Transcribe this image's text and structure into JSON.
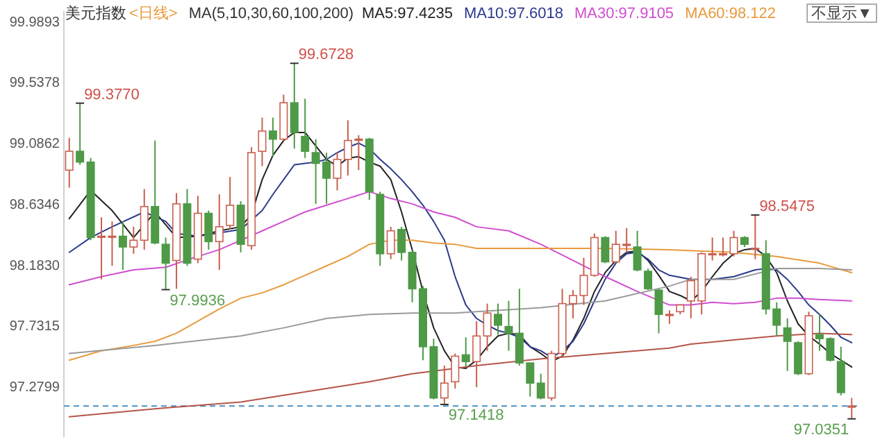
{
  "chart_data": {
    "type": "candlestick",
    "title": "美元指数",
    "subtitle": "<日线>",
    "legend_title": "MA(5,10,30,60,100,200)",
    "legend": "top",
    "tick_labels": "y",
    "categories": [
      null,
      null,
      null,
      null,
      null,
      null,
      null,
      null,
      null,
      null,
      null,
      null,
      null,
      null,
      null,
      null,
      null,
      null,
      null,
      null,
      null,
      null,
      null,
      null,
      null,
      null,
      null,
      null,
      null,
      null,
      null,
      null,
      null,
      null,
      null,
      null,
      null,
      null,
      null,
      null,
      null,
      null,
      null,
      null,
      null,
      null,
      null,
      null,
      null,
      null,
      null,
      null,
      null,
      null,
      null,
      null,
      null,
      null,
      null,
      null,
      null,
      null,
      null,
      null,
      null,
      null,
      null,
      null,
      null,
      null,
      null,
      null,
      null,
      null
    ],
    "ohlc": [
      [
        98.88,
        99.12,
        98.75,
        99.02
      ],
      [
        99.02,
        99.377,
        98.92,
        98.94
      ],
      [
        98.94,
        98.97,
        98.36,
        98.38
      ],
      [
        98.39,
        98.53,
        98.07,
        98.39
      ],
      [
        98.39,
        98.5,
        98.17,
        98.39
      ],
      [
        98.39,
        98.5,
        98.14,
        98.31
      ],
      [
        98.31,
        98.46,
        98.26,
        98.36
      ],
      [
        98.36,
        98.74,
        98.29,
        98.61
      ],
      [
        98.61,
        99.1,
        98.33,
        98.34
      ],
      [
        98.33,
        98.38,
        97.9936,
        98.19
      ],
      [
        98.21,
        98.71,
        98.0,
        98.63
      ],
      [
        98.63,
        98.74,
        98.17,
        98.19
      ],
      [
        98.22,
        98.69,
        98.19,
        98.56
      ],
      [
        98.56,
        98.58,
        98.29,
        98.35
      ],
      [
        98.35,
        98.7,
        98.14,
        98.46
      ],
      [
        98.47,
        98.83,
        98.44,
        98.62
      ],
      [
        98.62,
        98.65,
        98.27,
        98.33
      ],
      [
        98.32,
        99.05,
        98.29,
        99.01
      ],
      [
        99.02,
        99.27,
        98.91,
        99.17
      ],
      [
        99.17,
        99.27,
        98.98,
        99.11
      ],
      [
        99.11,
        99.44,
        99.1,
        99.38
      ],
      [
        99.38,
        99.6728,
        99.04,
        99.16
      ],
      [
        99.13,
        99.41,
        98.97,
        99.02
      ],
      [
        99.01,
        99.11,
        98.63,
        98.93
      ],
      [
        98.94,
        99.01,
        98.63,
        98.82
      ],
      [
        98.82,
        99.01,
        98.73,
        98.96
      ],
      [
        98.96,
        99.25,
        98.84,
        99.1
      ],
      [
        99.11,
        99.14,
        98.88,
        99.11
      ],
      [
        99.11,
        99.12,
        98.66,
        98.72
      ],
      [
        98.7,
        98.72,
        98.17,
        98.26
      ],
      [
        98.26,
        98.46,
        98.22,
        98.43
      ],
      [
        98.44,
        98.46,
        98.21,
        98.27
      ],
      [
        98.27,
        98.29,
        97.9,
        98.0
      ],
      [
        98.0,
        98.02,
        97.47,
        97.57
      ],
      [
        97.57,
        97.63,
        97.18,
        97.19
      ],
      [
        97.19,
        97.43,
        97.1418,
        97.3
      ],
      [
        97.31,
        97.52,
        97.26,
        97.5
      ],
      [
        97.51,
        97.64,
        97.42,
        97.46
      ],
      [
        97.46,
        97.76,
        97.27,
        97.65
      ],
      [
        97.65,
        97.89,
        97.54,
        97.82
      ],
      [
        97.81,
        97.89,
        97.66,
        97.73
      ],
      [
        97.72,
        97.91,
        97.54,
        97.67
      ],
      [
        97.67,
        98.0,
        97.43,
        97.45
      ],
      [
        97.45,
        97.45,
        97.2,
        97.3
      ],
      [
        97.3,
        97.37,
        97.18,
        97.19
      ],
      [
        97.19,
        97.54,
        97.17,
        97.52
      ],
      [
        97.52,
        98.0,
        97.49,
        97.89
      ],
      [
        97.89,
        97.99,
        97.78,
        97.95
      ],
      [
        97.95,
        98.23,
        97.88,
        98.1
      ],
      [
        98.1,
        98.41,
        98.09,
        98.38
      ],
      [
        98.38,
        98.39,
        98.19,
        98.2
      ],
      [
        98.2,
        98.43,
        98.19,
        98.33
      ],
      [
        98.33,
        98.45,
        98.27,
        98.33
      ],
      [
        98.31,
        98.43,
        98.13,
        98.14
      ],
      [
        98.13,
        98.15,
        97.99,
        98.0
      ],
      [
        97.99,
        98.0,
        97.67,
        97.81
      ],
      [
        97.81,
        97.84,
        97.74,
        97.81
      ],
      [
        97.83,
        97.88,
        97.81,
        97.88
      ],
      [
        97.91,
        98.09,
        97.78,
        98.06
      ],
      [
        97.91,
        98.27,
        97.81,
        98.26
      ],
      [
        98.26,
        98.38,
        98.21,
        98.26
      ],
      [
        98.26,
        98.38,
        98.24,
        98.26
      ],
      [
        98.26,
        98.43,
        98.24,
        98.38
      ],
      [
        98.38,
        98.39,
        98.31,
        98.33
      ],
      [
        98.3,
        98.5475,
        98.22,
        98.3
      ],
      [
        98.26,
        98.36,
        97.81,
        97.85
      ],
      [
        97.85,
        97.9,
        97.65,
        97.73
      ],
      [
        97.71,
        97.78,
        97.39,
        97.61
      ],
      [
        97.6,
        97.61,
        97.36,
        97.37
      ],
      [
        97.37,
        97.83,
        97.36,
        97.8
      ],
      [
        97.66,
        97.81,
        97.54,
        97.63
      ],
      [
        97.63,
        97.64,
        97.46,
        97.47
      ],
      [
        97.46,
        97.57,
        97.21,
        97.23
      ],
      [
        97.13,
        97.19,
        97.0351,
        97.13
      ]
    ],
    "series": [
      {
        "type": "line",
        "name": "MA5:97.4235",
        "color": "#222222",
        "values": [
          98.52,
          null,
          98.73,
          null,
          98.58,
          null,
          98.38,
          null,
          98.57,
          null,
          98.38,
          null,
          98.39,
          null,
          98.43,
          null,
          98.46,
          98.55,
          98.81,
          98.99,
          99.1,
          99.16,
          99.16,
          99.06,
          98.96,
          98.91,
          98.97,
          98.98,
          98.94,
          98.91,
          98.81,
          98.57,
          98.29,
          97.98,
          97.71,
          97.54,
          97.42,
          97.41,
          97.47,
          97.57,
          97.65,
          97.67,
          97.66,
          97.57,
          97.52,
          97.46,
          97.5,
          97.62,
          97.78,
          97.98,
          98.12,
          98.21,
          98.27,
          98.28,
          98.21,
          98.1,
          97.98,
          97.95,
          97.91,
          97.98,
          98.09,
          98.19,
          98.26,
          98.29,
          98.3,
          98.24,
          98.12,
          97.91,
          97.74,
          97.65,
          97.59,
          97.52,
          97.47,
          97.42
        ]
      },
      {
        "type": "line",
        "name": "MA10:97.6018",
        "color": "#2b3a8c",
        "values": [
          98.27,
          null,
          98.38,
          null,
          98.46,
          null,
          null,
          98.57,
          null,
          98.5,
          98.41,
          null,
          98.39,
          null,
          null,
          null,
          98.44,
          null,
          98.58,
          98.7,
          98.81,
          98.92,
          98.93,
          98.94,
          98.96,
          99.01,
          99.05,
          99.08,
          99.04,
          98.96,
          98.89,
          98.81,
          98.72,
          98.62,
          98.5,
          98.36,
          98.09,
          97.88,
          97.78,
          97.73,
          97.69,
          97.67,
          97.64,
          97.57,
          97.54,
          97.49,
          97.54,
          97.61,
          97.74,
          97.91,
          98.07,
          98.19,
          98.26,
          98.27,
          98.22,
          98.14,
          98.1,
          null,
          98.07,
          null,
          98.07,
          null,
          98.09,
          null,
          98.14,
          98.15,
          98.14,
          98.07,
          97.98,
          97.88,
          97.81,
          97.73,
          97.64,
          97.6
        ]
      },
      {
        "type": "line",
        "name": "MA30:97.9105",
        "color": "#d04fd0",
        "values": [
          98.03,
          null,
          null,
          98.09,
          null,
          null,
          98.14,
          null,
          null,
          98.16,
          null,
          null,
          98.24,
          null,
          98.29,
          null,
          98.36,
          null,
          98.43,
          null,
          98.5,
          null,
          98.57,
          null,
          98.62,
          null,
          98.67,
          null,
          98.72,
          null,
          98.67,
          null,
          98.63,
          null,
          98.57,
          null,
          98.53,
          null,
          98.46,
          null,
          null,
          98.43,
          null,
          null,
          98.33,
          null,
          null,
          98.21,
          null,
          null,
          98.09,
          null,
          null,
          97.98,
          null,
          null,
          97.88,
          null,
          97.88,
          null,
          97.9,
          null,
          97.89,
          null,
          97.9,
          null,
          97.93,
          null,
          97.93,
          null,
          97.92,
          null,
          null,
          97.91
        ]
      },
      {
        "type": "line",
        "name": "MA60:98.122",
        "color": "#e89a3c",
        "values": [
          97.47,
          null,
          null,
          97.54,
          null,
          null,
          97.58,
          null,
          97.61,
          null,
          97.67,
          null,
          97.76,
          null,
          97.85,
          null,
          97.93,
          null,
          97.97,
          null,
          98.03,
          null,
          98.1,
          null,
          98.17,
          null,
          98.24,
          null,
          98.33,
          null,
          98.36,
          null,
          98.36,
          null,
          98.34,
          null,
          98.33,
          null,
          98.3,
          null,
          null,
          null,
          null,
          null,
          98.3,
          null,
          null,
          null,
          null,
          null,
          98.3,
          null,
          null,
          null,
          null,
          null,
          98.29,
          null,
          null,
          null,
          null,
          null,
          98.27,
          null,
          null,
          null,
          98.24,
          null,
          null,
          null,
          98.19,
          null,
          null,
          98.12
        ]
      },
      {
        "type": "line",
        "color": "#9a9a9a",
        "values": [
          97.52,
          null,
          null,
          null,
          null,
          null,
          null,
          null,
          97.58,
          null,
          null,
          null,
          null,
          null,
          null,
          null,
          97.65,
          null,
          null,
          null,
          97.71,
          null,
          null,
          null,
          97.78,
          null,
          null,
          null,
          97.81,
          null,
          null,
          null,
          97.82,
          null,
          null,
          null,
          97.82,
          null,
          97.83,
          null,
          null,
          null,
          null,
          null,
          97.86,
          null,
          null,
          null,
          null,
          null,
          97.91,
          null,
          null,
          null,
          null,
          null,
          98.02,
          null,
          98.07,
          null,
          null,
          null,
          98.07,
          null,
          null,
          null,
          98.15,
          null,
          null,
          null,
          98.15,
          null,
          null,
          98.14
        ]
      },
      {
        "type": "line",
        "color": "#b5554a",
        "values": [
          97.05,
          null,
          null,
          null,
          null,
          null,
          null,
          null,
          97.11,
          null,
          null,
          null,
          null,
          null,
          null,
          null,
          97.16,
          null,
          null,
          null,
          97.21,
          null,
          null,
          null,
          97.26,
          null,
          null,
          null,
          97.31,
          null,
          null,
          null,
          97.37,
          null,
          null,
          null,
          97.41,
          null,
          97.43,
          null,
          null,
          null,
          null,
          null,
          97.48,
          null,
          null,
          null,
          null,
          null,
          97.52,
          null,
          null,
          null,
          null,
          null,
          97.56,
          null,
          97.59,
          null,
          null,
          null,
          97.62,
          null,
          null,
          null,
          97.65,
          null,
          null,
          null,
          97.67,
          null,
          null,
          97.66
        ]
      }
    ],
    "ylim": [
      96.9,
      100.06
    ],
    "yticks": [
      {
        "value": 97.2799,
        "label": "97.2799"
      },
      {
        "value": 97.7315,
        "label": "97.7315"
      },
      {
        "value": 98.183,
        "label": "98.1830"
      },
      {
        "value": 98.6346,
        "label": "98.6346"
      },
      {
        "value": 99.0862,
        "label": "99.0862"
      },
      {
        "value": 99.5378,
        "label": "99.5378"
      },
      {
        "value": 99.9893,
        "label": "99.9893"
      }
    ],
    "ref_lines": [
      {
        "axis": "y",
        "value": 97.13,
        "color": "#4a90c2",
        "line_style": "dashed"
      }
    ],
    "annotations": [
      "不显示▼",
      "99.3770",
      "99.6728",
      "97.9936",
      "97.1418",
      "98.5475",
      "97.0351"
    ]
  }
}
